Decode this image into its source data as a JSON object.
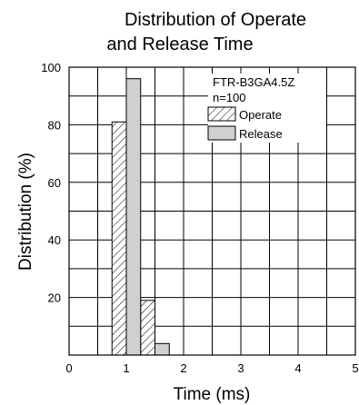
{
  "chart_data": {
    "type": "bar",
    "title_line1": "Distribution of Operate",
    "title_line2": "and Release Time",
    "xlabel": "Time (ms)",
    "ylabel": "Distribution (%)",
    "xlim": [
      0,
      5
    ],
    "ylim": [
      0,
      100
    ],
    "x_ticks": [
      "0",
      "1",
      "2",
      "3",
      "4",
      "5"
    ],
    "y_ticks": [
      "20",
      "40",
      "60",
      "80",
      "100"
    ],
    "grid": true,
    "grid_step_x": 0.5,
    "grid_step_y": 10,
    "bin_width": 0.25,
    "annotation_model": "FTR-B3GA4.5Z",
    "annotation_n": "n=100",
    "legend_position": "top-right",
    "series": [
      {
        "name": "Operate",
        "pattern": "hatched",
        "bins": [
          {
            "x_start": 0.75,
            "value": 81
          },
          {
            "x_start": 1.25,
            "value": 19
          }
        ]
      },
      {
        "name": "Release",
        "pattern": "gray",
        "color": "#d0d0d0",
        "bins": [
          {
            "x_start": 1.0,
            "value": 96
          },
          {
            "x_start": 1.5,
            "value": 4
          }
        ]
      }
    ]
  }
}
